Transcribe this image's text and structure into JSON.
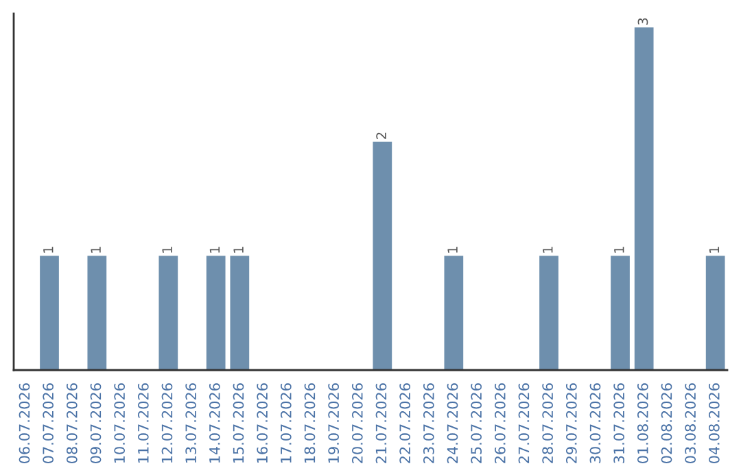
{
  "chart_data": {
    "type": "bar",
    "categories": [
      "06.07.2026",
      "07.07.2026",
      "08.07.2026",
      "09.07.2026",
      "10.07.2026",
      "11.07.2026",
      "12.07.2026",
      "13.07.2026",
      "14.07.2026",
      "15.07.2026",
      "16.07.2026",
      "17.07.2026",
      "18.07.2026",
      "19.07.2026",
      "20.07.2026",
      "21.07.2026",
      "22.07.2026",
      "23.07.2026",
      "24.07.2026",
      "25.07.2026",
      "26.07.2026",
      "27.07.2026",
      "28.07.2026",
      "29.07.2026",
      "30.07.2026",
      "31.07.2026",
      "01.08.2026",
      "02.08.2026",
      "03.08.2026",
      "04.08.2026"
    ],
    "values": [
      0,
      1,
      0,
      1,
      0,
      0,
      1,
      0,
      1,
      1,
      0,
      0,
      0,
      0,
      0,
      2,
      0,
      0,
      1,
      0,
      0,
      0,
      1,
      0,
      0,
      1,
      3,
      0,
      0,
      1
    ],
    "value_labels": [
      null,
      "1",
      null,
      "1",
      null,
      null,
      "1",
      null,
      "1",
      "1",
      null,
      null,
      null,
      null,
      null,
      "2",
      null,
      null,
      "1",
      null,
      null,
      null,
      "1",
      null,
      null,
      "1",
      "3",
      null,
      null,
      "1"
    ],
    "color": "#6e8fad",
    "tick_labels": "x",
    "grid": false,
    "legend": false
  }
}
